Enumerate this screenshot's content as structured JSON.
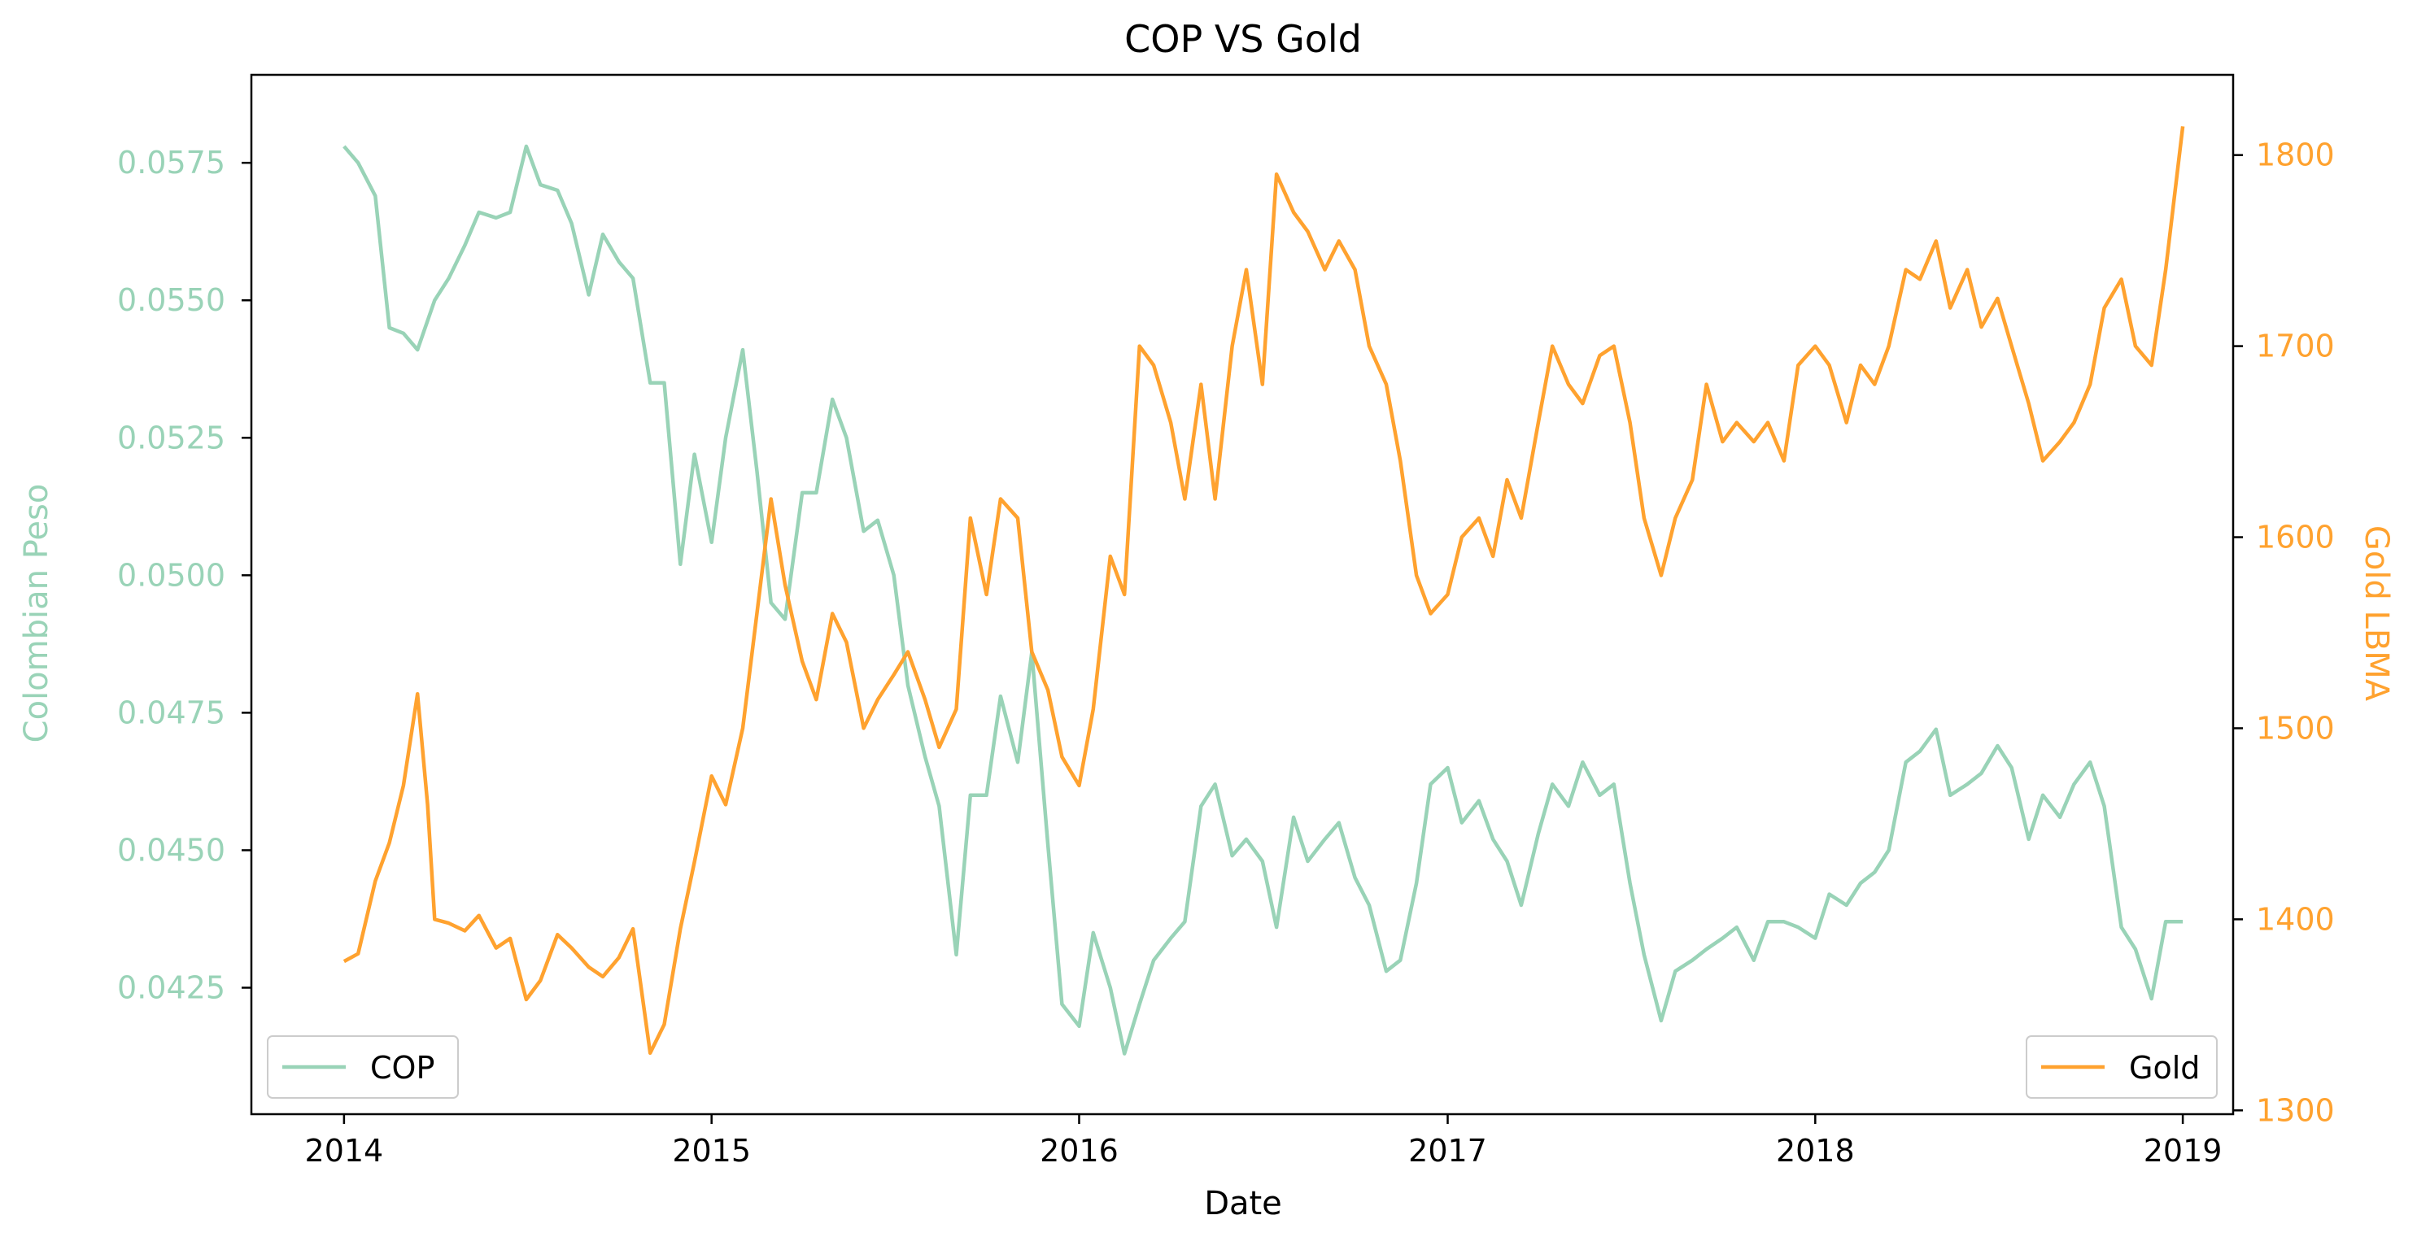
{
  "chart_data": {
    "type": "line",
    "title": "COP VS Gold",
    "xlabel": "Date",
    "x_ticks": [
      "2014",
      "2015",
      "2016",
      "2017",
      "2018",
      "2019"
    ],
    "x_range": [
      "2013-10-01",
      "2019-02-20"
    ],
    "grid": false,
    "dual_axis": true,
    "left_axis": {
      "label": "Colombian Peso",
      "color": "#99d3b7",
      "range": [
        0.0402,
        0.0591
      ],
      "ticks": [
        "0.0425",
        "0.0450",
        "0.0475",
        "0.0500",
        "0.0525",
        "0.0550",
        "0.0575"
      ]
    },
    "right_axis": {
      "label": "Gold LBMA",
      "color": "#ffa22f",
      "range": [
        1298,
        1842
      ],
      "ticks": [
        "1300",
        "1400",
        "1500",
        "1600",
        "1700",
        "1800"
      ]
    },
    "series": [
      {
        "name": "COP",
        "axis": "left",
        "color": "#99d3b7",
        "legend_position": "lower-left",
        "points": [
          [
            "2014-01-01",
            0.0578
          ],
          [
            "2014-01-15",
            0.0575
          ],
          [
            "2014-02-01",
            0.0569
          ],
          [
            "2014-02-15",
            0.0545
          ],
          [
            "2014-03-01",
            0.0544
          ],
          [
            "2014-03-15",
            0.0541
          ],
          [
            "2014-04-01",
            0.055
          ],
          [
            "2014-04-15",
            0.0554
          ],
          [
            "2014-05-01",
            0.056
          ],
          [
            "2014-05-15",
            0.0566
          ],
          [
            "2014-06-01",
            0.0565
          ],
          [
            "2014-06-15",
            0.0566
          ],
          [
            "2014-07-01",
            0.0578
          ],
          [
            "2014-07-15",
            0.0571
          ],
          [
            "2014-08-01",
            0.057
          ],
          [
            "2014-08-15",
            0.0564
          ],
          [
            "2014-09-01",
            0.0551
          ],
          [
            "2014-09-15",
            0.0562
          ],
          [
            "2014-10-01",
            0.0557
          ],
          [
            "2014-10-15",
            0.0554
          ],
          [
            "2014-11-01",
            0.0535
          ],
          [
            "2014-11-15",
            0.0535
          ],
          [
            "2014-12-01",
            0.0502
          ],
          [
            "2014-12-15",
            0.0522
          ],
          [
            "2015-01-01",
            0.0506
          ],
          [
            "2015-01-15",
            0.0525
          ],
          [
            "2015-02-01",
            0.0541
          ],
          [
            "2015-02-15",
            0.0519
          ],
          [
            "2015-03-01",
            0.0495
          ],
          [
            "2015-03-15",
            0.0492
          ],
          [
            "2015-04-01",
            0.0515
          ],
          [
            "2015-04-15",
            0.0515
          ],
          [
            "2015-05-01",
            0.0532
          ],
          [
            "2015-05-15",
            0.0525
          ],
          [
            "2015-06-01",
            0.0508
          ],
          [
            "2015-06-15",
            0.051
          ],
          [
            "2015-07-01",
            0.05
          ],
          [
            "2015-07-15",
            0.048
          ],
          [
            "2015-08-01",
            0.0467
          ],
          [
            "2015-08-15",
            0.0458
          ],
          [
            "2015-09-01",
            0.0431
          ],
          [
            "2015-09-15",
            0.046
          ],
          [
            "2015-10-01",
            0.046
          ],
          [
            "2015-10-15",
            0.0478
          ],
          [
            "2015-11-01",
            0.0466
          ],
          [
            "2015-11-15",
            0.0486
          ],
          [
            "2015-12-01",
            0.0451
          ],
          [
            "2015-12-15",
            0.0422
          ],
          [
            "2016-01-01",
            0.0418
          ],
          [
            "2016-01-15",
            0.0435
          ],
          [
            "2016-02-01",
            0.0425
          ],
          [
            "2016-02-15",
            0.0413
          ],
          [
            "2016-03-01",
            0.0422
          ],
          [
            "2016-03-15",
            0.043
          ],
          [
            "2016-04-01",
            0.0434
          ],
          [
            "2016-04-15",
            0.0437
          ],
          [
            "2016-05-01",
            0.0458
          ],
          [
            "2016-05-15",
            0.0462
          ],
          [
            "2016-06-01",
            0.0449
          ],
          [
            "2016-06-15",
            0.0452
          ],
          [
            "2016-07-01",
            0.0448
          ],
          [
            "2016-07-15",
            0.0436
          ],
          [
            "2016-08-01",
            0.0456
          ],
          [
            "2016-08-15",
            0.0448
          ],
          [
            "2016-09-01",
            0.0452
          ],
          [
            "2016-09-15",
            0.0455
          ],
          [
            "2016-10-01",
            0.0445
          ],
          [
            "2016-10-15",
            0.044
          ],
          [
            "2016-11-01",
            0.0428
          ],
          [
            "2016-11-15",
            0.043
          ],
          [
            "2016-12-01",
            0.0444
          ],
          [
            "2016-12-15",
            0.0462
          ],
          [
            "2017-01-01",
            0.0465
          ],
          [
            "2017-01-15",
            0.0455
          ],
          [
            "2017-02-01",
            0.0459
          ],
          [
            "2017-02-15",
            0.0452
          ],
          [
            "2017-03-01",
            0.0448
          ],
          [
            "2017-03-15",
            0.044
          ],
          [
            "2017-04-01",
            0.0453
          ],
          [
            "2017-04-15",
            0.0462
          ],
          [
            "2017-05-01",
            0.0458
          ],
          [
            "2017-05-15",
            0.0466
          ],
          [
            "2017-06-01",
            0.046
          ],
          [
            "2017-06-15",
            0.0462
          ],
          [
            "2017-07-01",
            0.0444
          ],
          [
            "2017-07-15",
            0.0431
          ],
          [
            "2017-08-01",
            0.0419
          ],
          [
            "2017-08-15",
            0.0428
          ],
          [
            "2017-09-01",
            0.043
          ],
          [
            "2017-09-15",
            0.0432
          ],
          [
            "2017-10-01",
            0.0434
          ],
          [
            "2017-10-15",
            0.0436
          ],
          [
            "2017-11-01",
            0.043
          ],
          [
            "2017-11-15",
            0.0437
          ],
          [
            "2017-12-01",
            0.0437
          ],
          [
            "2017-12-15",
            0.0436
          ],
          [
            "2018-01-01",
            0.0434
          ],
          [
            "2018-01-15",
            0.0442
          ],
          [
            "2018-02-01",
            0.044
          ],
          [
            "2018-02-15",
            0.0444
          ],
          [
            "2018-03-01",
            0.0446
          ],
          [
            "2018-03-15",
            0.045
          ],
          [
            "2018-04-01",
            0.0466
          ],
          [
            "2018-04-15",
            0.0468
          ],
          [
            "2018-05-01",
            0.0472
          ],
          [
            "2018-05-15",
            0.046
          ],
          [
            "2018-06-01",
            0.0462
          ],
          [
            "2018-06-15",
            0.0464
          ],
          [
            "2018-07-01",
            0.0469
          ],
          [
            "2018-07-15",
            0.0465
          ],
          [
            "2018-08-01",
            0.0452
          ],
          [
            "2018-08-15",
            0.046
          ],
          [
            "2018-09-01",
            0.0456
          ],
          [
            "2018-09-15",
            0.0462
          ],
          [
            "2018-10-01",
            0.0466
          ],
          [
            "2018-10-15",
            0.0458
          ],
          [
            "2018-11-01",
            0.0436
          ],
          [
            "2018-11-15",
            0.0432
          ],
          [
            "2018-12-01",
            0.0423
          ],
          [
            "2018-12-15",
            0.0437
          ],
          [
            "2019-01-01",
            0.0437
          ]
        ]
      },
      {
        "name": "Gold",
        "axis": "right",
        "color": "#ffa22f",
        "legend_position": "lower-right",
        "points": [
          [
            "2014-01-01",
            1378
          ],
          [
            "2014-01-15",
            1382
          ],
          [
            "2014-02-01",
            1420
          ],
          [
            "2014-02-15",
            1440
          ],
          [
            "2014-03-01",
            1470
          ],
          [
            "2014-03-15",
            1518
          ],
          [
            "2014-03-25",
            1460
          ],
          [
            "2014-04-01",
            1400
          ],
          [
            "2014-04-15",
            1398
          ],
          [
            "2014-05-01",
            1394
          ],
          [
            "2014-05-15",
            1402
          ],
          [
            "2014-06-01",
            1385
          ],
          [
            "2014-06-15",
            1390
          ],
          [
            "2014-07-01",
            1358
          ],
          [
            "2014-07-15",
            1368
          ],
          [
            "2014-08-01",
            1392
          ],
          [
            "2014-08-15",
            1385
          ],
          [
            "2014-09-01",
            1375
          ],
          [
            "2014-09-15",
            1370
          ],
          [
            "2014-10-01",
            1380
          ],
          [
            "2014-10-15",
            1395
          ],
          [
            "2014-11-01",
            1330
          ],
          [
            "2014-11-15",
            1345
          ],
          [
            "2014-12-01",
            1395
          ],
          [
            "2014-12-15",
            1430
          ],
          [
            "2015-01-01",
            1475
          ],
          [
            "2015-01-15",
            1460
          ],
          [
            "2015-02-01",
            1500
          ],
          [
            "2015-02-15",
            1560
          ],
          [
            "2015-03-01",
            1620
          ],
          [
            "2015-03-15",
            1575
          ],
          [
            "2015-04-01",
            1535
          ],
          [
            "2015-04-15",
            1515
          ],
          [
            "2015-05-01",
            1560
          ],
          [
            "2015-05-15",
            1545
          ],
          [
            "2015-06-01",
            1500
          ],
          [
            "2015-06-15",
            1515
          ],
          [
            "2015-07-01",
            1528
          ],
          [
            "2015-07-15",
            1540
          ],
          [
            "2015-08-01",
            1515
          ],
          [
            "2015-08-15",
            1490
          ],
          [
            "2015-09-01",
            1510
          ],
          [
            "2015-09-15",
            1610
          ],
          [
            "2015-10-01",
            1570
          ],
          [
            "2015-10-15",
            1620
          ],
          [
            "2015-11-01",
            1610
          ],
          [
            "2015-11-15",
            1540
          ],
          [
            "2015-12-01",
            1520
          ],
          [
            "2015-12-15",
            1485
          ],
          [
            "2016-01-01",
            1470
          ],
          [
            "2016-01-15",
            1510
          ],
          [
            "2016-02-01",
            1590
          ],
          [
            "2016-02-15",
            1570
          ],
          [
            "2016-03-01",
            1700
          ],
          [
            "2016-03-15",
            1690
          ],
          [
            "2016-04-01",
            1660
          ],
          [
            "2016-04-15",
            1620
          ],
          [
            "2016-05-01",
            1680
          ],
          [
            "2016-05-15",
            1620
          ],
          [
            "2016-06-01",
            1700
          ],
          [
            "2016-06-15",
            1740
          ],
          [
            "2016-07-01",
            1680
          ],
          [
            "2016-07-15",
            1790
          ],
          [
            "2016-08-01",
            1770
          ],
          [
            "2016-08-15",
            1760
          ],
          [
            "2016-09-01",
            1740
          ],
          [
            "2016-09-15",
            1755
          ],
          [
            "2016-10-01",
            1740
          ],
          [
            "2016-10-15",
            1700
          ],
          [
            "2016-11-01",
            1680
          ],
          [
            "2016-11-15",
            1640
          ],
          [
            "2016-12-01",
            1580
          ],
          [
            "2016-12-15",
            1560
          ],
          [
            "2017-01-01",
            1570
          ],
          [
            "2017-01-15",
            1600
          ],
          [
            "2017-02-01",
            1610
          ],
          [
            "2017-02-15",
            1590
          ],
          [
            "2017-03-01",
            1630
          ],
          [
            "2017-03-15",
            1610
          ],
          [
            "2017-04-01",
            1660
          ],
          [
            "2017-04-15",
            1700
          ],
          [
            "2017-05-01",
            1680
          ],
          [
            "2017-05-15",
            1670
          ],
          [
            "2017-06-01",
            1695
          ],
          [
            "2017-06-15",
            1700
          ],
          [
            "2017-07-01",
            1660
          ],
          [
            "2017-07-15",
            1610
          ],
          [
            "2017-08-01",
            1580
          ],
          [
            "2017-08-15",
            1610
          ],
          [
            "2017-09-01",
            1630
          ],
          [
            "2017-09-15",
            1680
          ],
          [
            "2017-10-01",
            1650
          ],
          [
            "2017-10-15",
            1660
          ],
          [
            "2017-11-01",
            1650
          ],
          [
            "2017-11-15",
            1660
          ],
          [
            "2017-12-01",
            1640
          ],
          [
            "2017-12-15",
            1690
          ],
          [
            "2018-01-01",
            1700
          ],
          [
            "2018-01-15",
            1690
          ],
          [
            "2018-02-01",
            1660
          ],
          [
            "2018-02-15",
            1690
          ],
          [
            "2018-03-01",
            1680
          ],
          [
            "2018-03-15",
            1700
          ],
          [
            "2018-04-01",
            1740
          ],
          [
            "2018-04-15",
            1735
          ],
          [
            "2018-05-01",
            1755
          ],
          [
            "2018-05-15",
            1720
          ],
          [
            "2018-06-01",
            1740
          ],
          [
            "2018-06-15",
            1710
          ],
          [
            "2018-07-01",
            1725
          ],
          [
            "2018-07-15",
            1700
          ],
          [
            "2018-08-01",
            1670
          ],
          [
            "2018-08-15",
            1640
          ],
          [
            "2018-09-01",
            1650
          ],
          [
            "2018-09-15",
            1660
          ],
          [
            "2018-10-01",
            1680
          ],
          [
            "2018-10-15",
            1720
          ],
          [
            "2018-11-01",
            1735
          ],
          [
            "2018-11-15",
            1700
          ],
          [
            "2018-12-01",
            1690
          ],
          [
            "2018-12-15",
            1740
          ],
          [
            "2019-01-01",
            1815
          ]
        ]
      }
    ]
  }
}
